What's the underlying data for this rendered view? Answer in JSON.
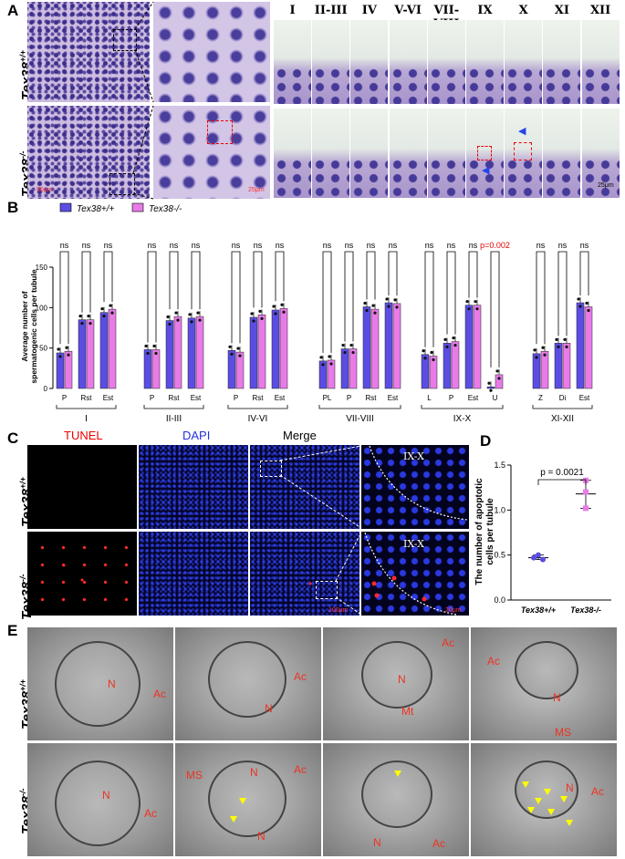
{
  "panels": {
    "a": "A",
    "b": "B",
    "c": "C",
    "d": "D",
    "e": "E"
  },
  "genotypes": {
    "wt": "Tex38",
    "wt_sup": "+/+",
    "ko": "Tex38",
    "ko_sup": "-/-"
  },
  "panel_a": {
    "stages": [
      "I",
      "II-III",
      "IV",
      "V-VI",
      "VII-VIII",
      "IX",
      "X",
      "XI",
      "XII"
    ],
    "scalebars": [
      "50μm",
      "25μm",
      "25μm"
    ]
  },
  "panel_c": {
    "channels": [
      "TUNEL",
      "DAPI",
      "Merge"
    ],
    "zoom_label": "IX-X",
    "scalebars": [
      "100μm",
      "20μm"
    ]
  },
  "panel_e": {
    "labels_top": [
      [
        "N",
        "Ac"
      ],
      [
        "N",
        "Ac"
      ],
      [
        "Ac",
        "N",
        "Mt"
      ],
      [
        "Ac",
        "N",
        "MS"
      ]
    ],
    "labels_bottom": [
      [
        "N",
        "Ac"
      ],
      [
        "MS",
        "N",
        "Ac",
        "N"
      ],
      [
        "N",
        "Ac"
      ],
      [
        "N",
        "Ac"
      ]
    ]
  },
  "colors": {
    "wt": "#5b4de3",
    "ko": "#e87be8",
    "red": "#e00000"
  },
  "chart_data": [
    {
      "type": "bar",
      "ylabel": "Average number of\nspermatogenic cells per tubule",
      "ylim": [
        0,
        150
      ],
      "yticks": [
        0,
        50,
        100,
        150
      ],
      "legend": "top-left",
      "series_names": [
        "Tex38+/+",
        "Tex38-/-"
      ],
      "groups": [
        {
          "stage": "I",
          "categories": [
            "P",
            "Rst",
            "Est"
          ],
          "wt": [
            44,
            85,
            94
          ],
          "ko": [
            46,
            85,
            98
          ],
          "sig": [
            "ns",
            "ns",
            "ns"
          ]
        },
        {
          "stage": "II-III",
          "categories": [
            "P",
            "Rst",
            "Est"
          ],
          "wt": [
            48,
            84,
            87
          ],
          "ko": [
            48,
            89,
            89
          ],
          "sig": [
            "ns",
            "ns",
            "ns"
          ]
        },
        {
          "stage": "IV-VI",
          "categories": [
            "P",
            "Rst",
            "Est"
          ],
          "wt": [
            47,
            88,
            97
          ],
          "ko": [
            45,
            91,
            99
          ],
          "sig": [
            "ns",
            "ns",
            "ns"
          ]
        },
        {
          "stage": "VII-VIII",
          "categories": [
            "PL",
            "P",
            "Rst",
            "Est"
          ],
          "wt": [
            34,
            49,
            101,
            106
          ],
          "ko": [
            35,
            49,
            98,
            105
          ],
          "sig": [
            "ns",
            "ns",
            "ns",
            "ns"
          ]
        },
        {
          "stage": "IX-X",
          "categories": [
            "L",
            "P",
            "Est",
            "U"
          ],
          "wt": [
            42,
            56,
            103,
            2
          ],
          "ko": [
            40,
            58,
            103,
            17
          ],
          "sig": [
            "ns",
            "ns",
            "ns",
            "p=0.002"
          ]
        },
        {
          "stage": "XI-XII",
          "categories": [
            "Z",
            "Di",
            "Est"
          ],
          "wt": [
            43,
            56,
            106
          ],
          "ko": [
            46,
            56,
            101
          ],
          "sig": [
            "ns",
            "ns",
            "ns"
          ]
        }
      ]
    },
    {
      "type": "scatter",
      "ylabel": "The number of apoptotic\ncells per tubule",
      "ylim": [
        0.0,
        1.5
      ],
      "yticks": [
        "0.0",
        "0.5",
        "1.0",
        "1.5"
      ],
      "categories": [
        "Tex38+/+",
        "Tex38-/-"
      ],
      "values": [
        [
          0.47,
          0.5,
          0.45
        ],
        [
          1.33,
          1.2,
          1.02
        ]
      ],
      "means": [
        0.47,
        1.18
      ],
      "pvalue": "p = 0.0021"
    }
  ]
}
